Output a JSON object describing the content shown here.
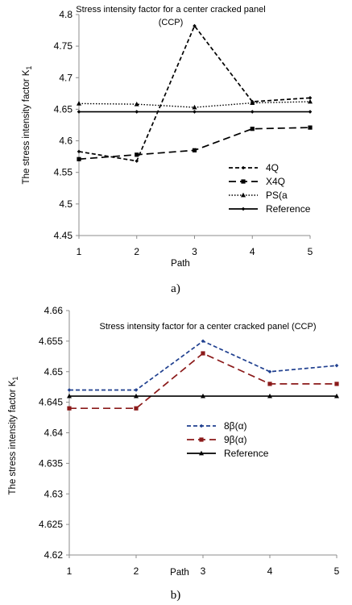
{
  "chart_data": [
    {
      "type": "line",
      "title": "Stress intensity factor for a center cracked panel (CCP)",
      "title_lines": [
        "Stress intensity factor for a center cracked panel",
        "(CCP)"
      ],
      "xlabel": "Path",
      "ylabel": "The stress intensity factor K",
      "ylabel_sub": "1",
      "caption": "a)",
      "x": [
        1,
        2,
        3,
        4,
        5
      ],
      "xticks": [
        "1",
        "2",
        "3",
        "4",
        "5"
      ],
      "ylim": [
        4.45,
        4.8
      ],
      "yticks": [
        "4.45",
        "4.5",
        "4.55",
        "4.6",
        "4.65",
        "4.7",
        "4.75",
        "4.8"
      ],
      "grid": false,
      "legend_position": "bottom-right",
      "series": [
        {
          "name": "4Q",
          "values": [
            4.583,
            4.568,
            4.782,
            4.662,
            4.668
          ],
          "color": "#000000",
          "dash": "dashed",
          "marker": "small-diamond"
        },
        {
          "name": "X4Q",
          "values": [
            4.571,
            4.578,
            4.585,
            4.619,
            4.621
          ],
          "color": "#000000",
          "dash": "long-dashed",
          "marker": "square"
        },
        {
          "name": "PS(a",
          "values": [
            4.659,
            4.658,
            4.653,
            4.66,
            4.662
          ],
          "color": "#000000",
          "dash": "dotted",
          "marker": "triangle"
        },
        {
          "name": "Reference",
          "values": [
            4.646,
            4.646,
            4.646,
            4.646,
            4.646
          ],
          "color": "#000000",
          "dash": "solid",
          "marker": "small-diamond"
        }
      ]
    },
    {
      "type": "line",
      "title": "Stress intensity factor for a center cracked panel (CCP)",
      "title_lines": [
        "Stress intensity factor for a center cracked panel (CCP)"
      ],
      "xlabel": "Path",
      "ylabel": "The stress intensity factor K",
      "ylabel_sub": "1",
      "caption": "b)",
      "x": [
        1,
        2,
        3,
        4,
        5
      ],
      "xticks": [
        "1",
        "2",
        "3",
        "4",
        "5"
      ],
      "ylim": [
        4.62,
        4.66
      ],
      "yticks": [
        "4.62",
        "4.625",
        "4.63",
        "4.635",
        "4.64",
        "4.645",
        "4.65",
        "4.655",
        "4.66"
      ],
      "grid": false,
      "legend_position": "center-right",
      "series": [
        {
          "name": "8β(α)",
          "values": [
            4.647,
            4.647,
            4.655,
            4.65,
            4.651
          ],
          "color": "#1f3f8f",
          "dash": "dashed",
          "marker": "small-diamond"
        },
        {
          "name": "9β(α)",
          "values": [
            4.644,
            4.644,
            4.653,
            4.648,
            4.648
          ],
          "color": "#8b1a1a",
          "dash": "long-dashed",
          "marker": "square"
        },
        {
          "name": "Reference",
          "values": [
            4.646,
            4.646,
            4.646,
            4.646,
            4.646
          ],
          "color": "#000000",
          "dash": "solid",
          "marker": "triangle"
        }
      ]
    }
  ]
}
